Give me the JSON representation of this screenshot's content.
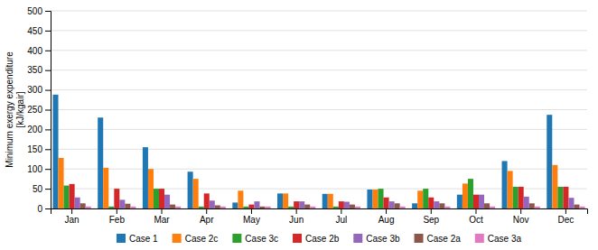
{
  "chart_data": {
    "type": "bar",
    "y_label": "Minimum exergy expenditure\n[kJ/kgair]",
    "categories": [
      "Jan",
      "Feb",
      "Mar",
      "Apr",
      "May",
      "Jun",
      "Jul",
      "Aug",
      "Sep",
      "Oct",
      "Nov",
      "Dec"
    ],
    "series": [
      {
        "name": "Case 1",
        "values": [
          288,
          230,
          155,
          93,
          15,
          38,
          37,
          48,
          13,
          35,
          120,
          237
        ]
      },
      {
        "name": "Case 2c",
        "values": [
          128,
          103,
          100,
          75,
          45,
          38,
          37,
          48,
          45,
          63,
          95,
          110
        ]
      },
      {
        "name": "Case 3c",
        "values": [
          58,
          5,
          50,
          5,
          5,
          5,
          5,
          50,
          50,
          75,
          55,
          55
        ]
      },
      {
        "name": "Case 2b",
        "values": [
          62,
          50,
          50,
          38,
          10,
          18,
          18,
          28,
          28,
          35,
          55,
          55
        ]
      },
      {
        "name": "Case 3b",
        "values": [
          28,
          22,
          35,
          20,
          18,
          18,
          17,
          18,
          18,
          35,
          30,
          27
        ]
      },
      {
        "name": "Case 2a",
        "values": [
          13,
          12,
          10,
          8,
          5,
          10,
          10,
          13,
          13,
          13,
          13,
          10
        ]
      },
      {
        "name": "Case 3a",
        "values": [
          5,
          5,
          5,
          5,
          5,
          5,
          5,
          5,
          5,
          5,
          5,
          5
        ]
      }
    ],
    "ylim": [
      0,
      500
    ],
    "yticks": [
      0,
      50,
      100,
      150,
      200,
      250,
      300,
      350,
      400,
      450,
      500
    ],
    "grid": true,
    "legend": "bottom"
  }
}
